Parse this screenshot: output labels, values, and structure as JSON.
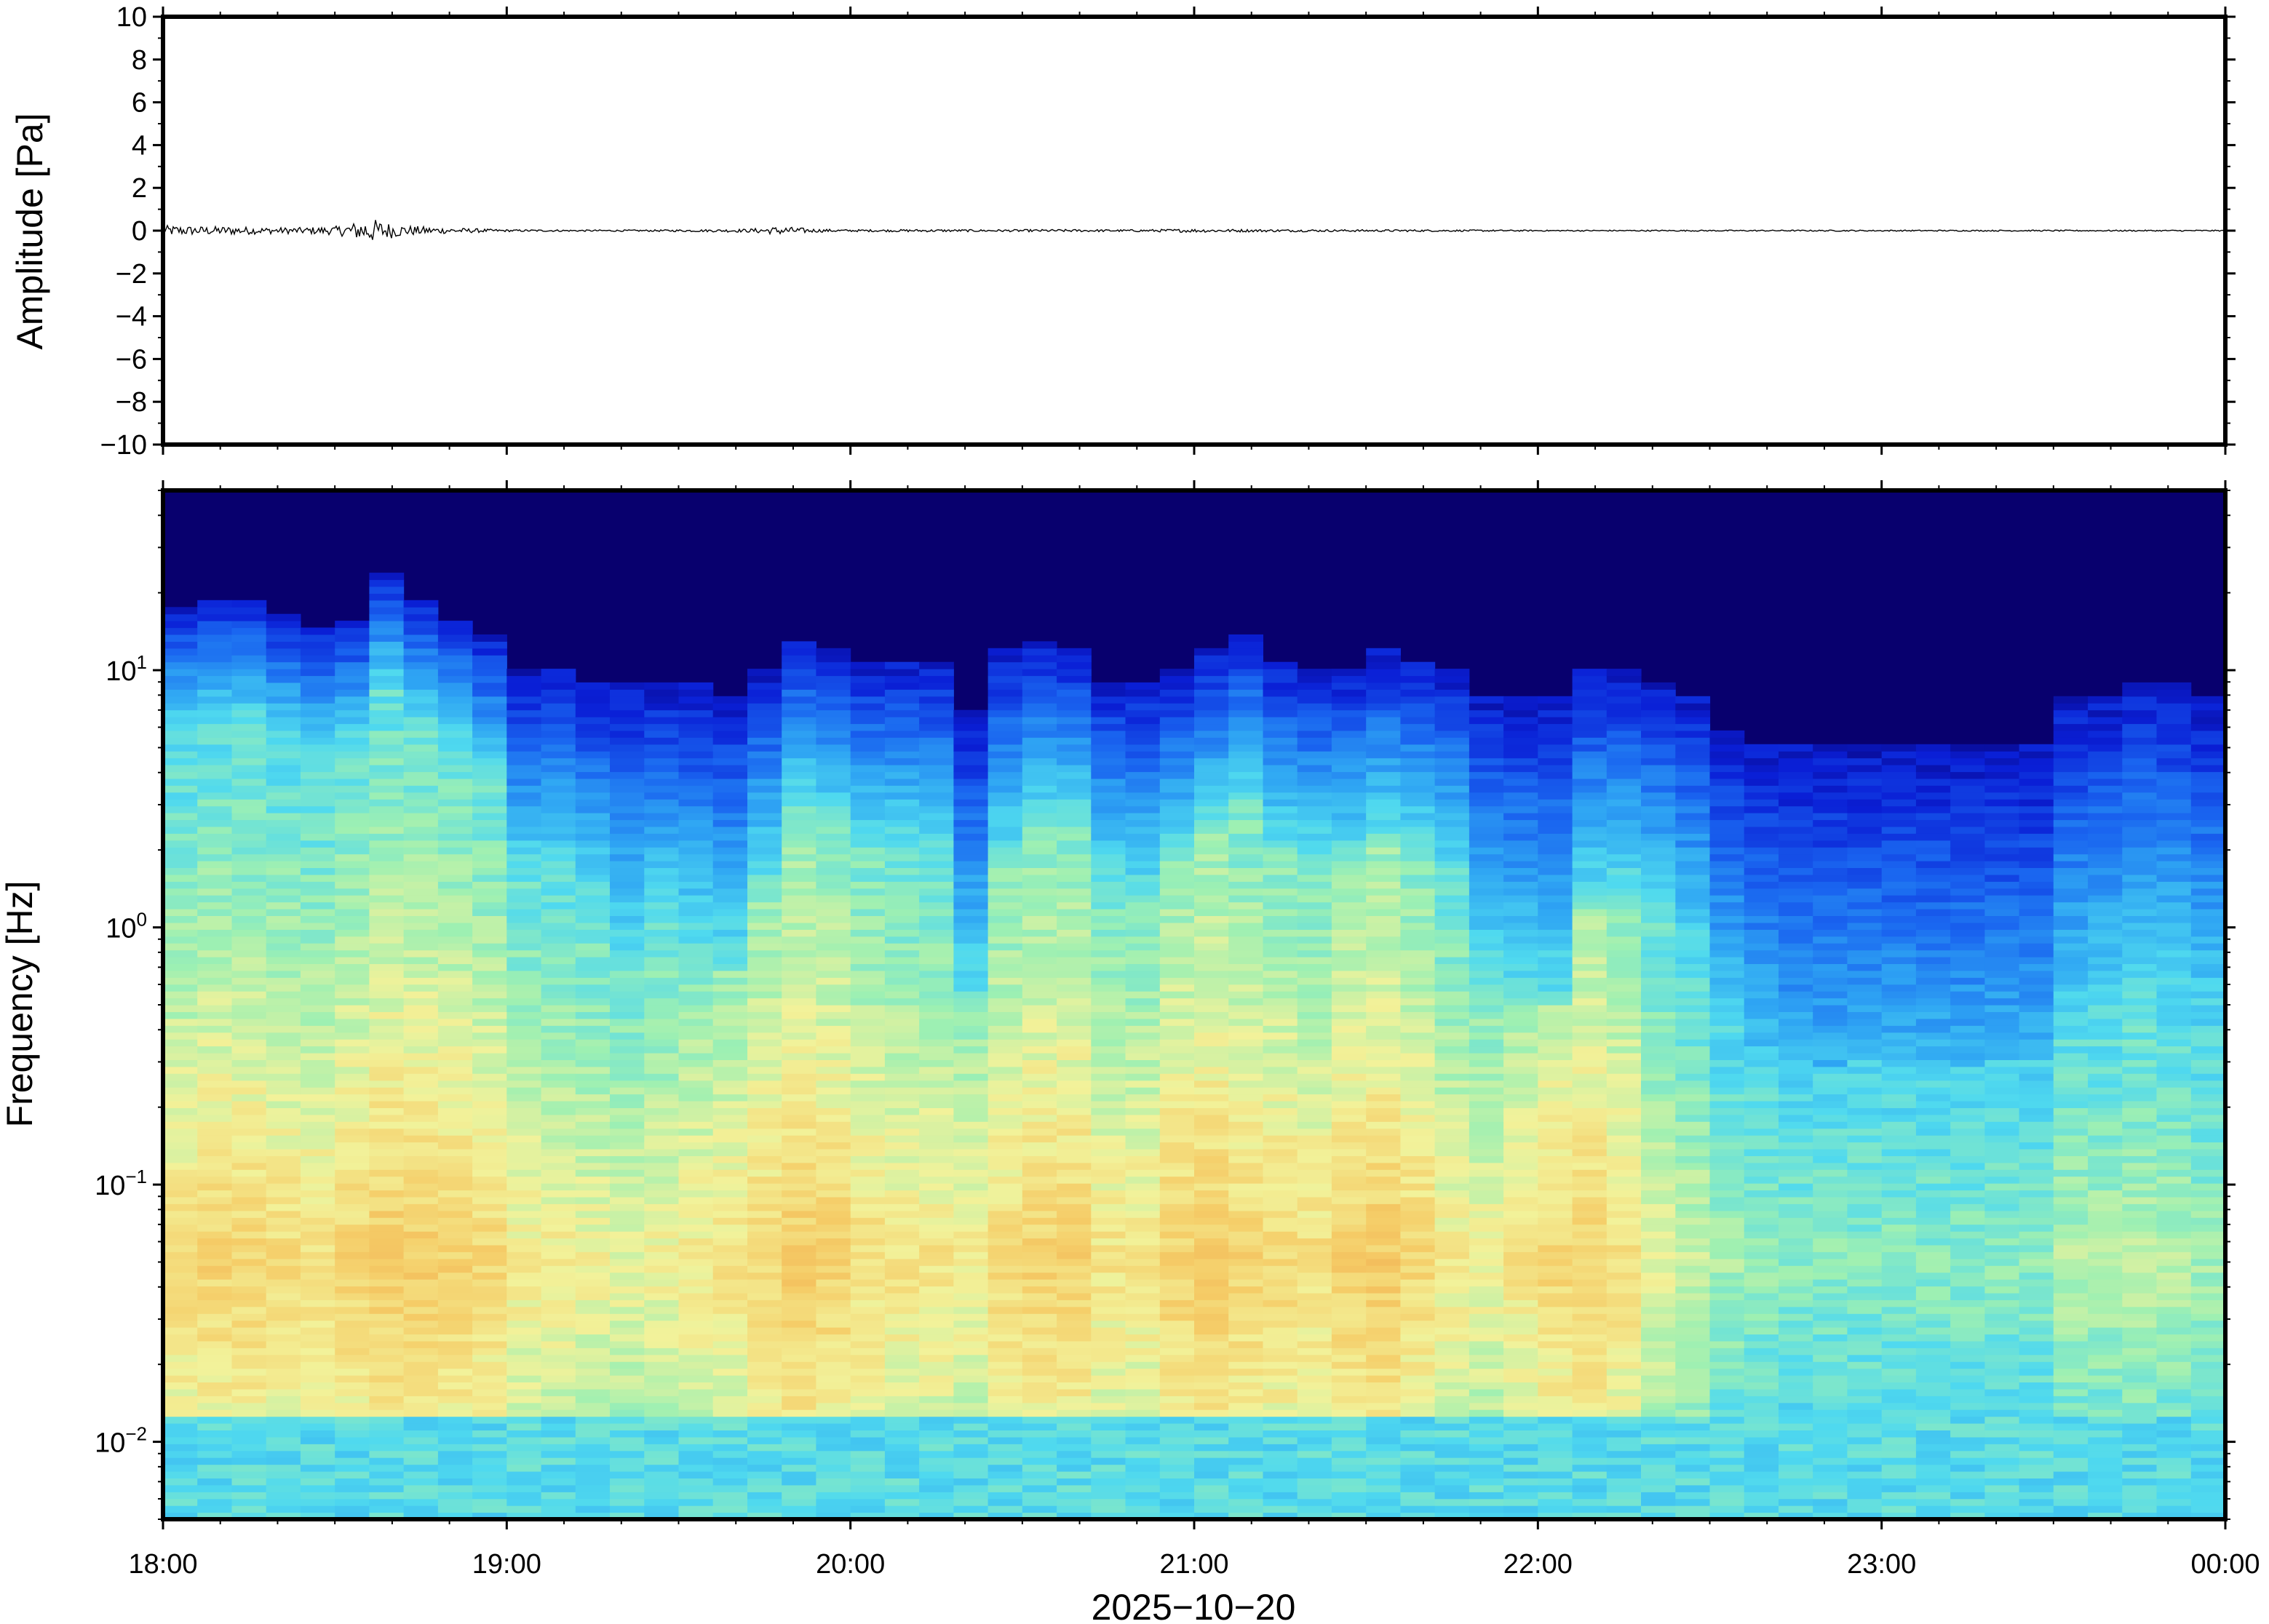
{
  "chart_data": [
    {
      "type": "line",
      "name": "waveform",
      "ylabel": "Amplitude [Pa]",
      "ylim": [
        -10,
        10
      ],
      "yticks": [
        10,
        8,
        6,
        4,
        2,
        0,
        -2,
        -4,
        -6,
        -8,
        -10
      ],
      "ytick_labels": [
        "10",
        "8",
        "6",
        "4",
        "2",
        "0",
        "−2",
        "−4",
        "−6",
        "−8",
        "−10"
      ],
      "x_range_hours": [
        18,
        24
      ],
      "envelope": {
        "x": [
          18.0,
          18.1,
          18.2,
          18.3,
          18.4,
          18.5,
          18.55,
          18.6,
          18.65,
          18.7,
          18.8,
          18.9,
          19.0,
          19.2,
          19.4,
          19.6,
          19.7,
          19.8,
          19.9,
          20.0,
          20.2,
          20.4,
          20.6,
          20.8,
          21.0,
          21.2,
          21.4,
          21.6,
          21.8,
          22.0,
          22.5,
          23.0,
          23.5,
          24.0
        ],
        "y": [
          0.25,
          0.2,
          0.2,
          0.15,
          0.15,
          0.2,
          0.35,
          0.6,
          0.4,
          0.25,
          0.15,
          0.1,
          0.05,
          0.04,
          0.04,
          0.06,
          0.08,
          0.2,
          0.08,
          0.05,
          0.06,
          0.05,
          0.06,
          0.05,
          0.08,
          0.06,
          0.05,
          0.05,
          0.04,
          0.03,
          0.03,
          0.03,
          0.03,
          0.03
        ]
      }
    },
    {
      "type": "heatmap",
      "name": "spectrogram",
      "ylabel": "Frequency [Hz]",
      "yscale": "log",
      "ylim": [
        0.005,
        50
      ],
      "yticks": [
        10,
        1,
        0.1,
        0.01
      ],
      "ytick_labels": [
        {
          "base": "10",
          "exp": "1"
        },
        {
          "base": "10",
          "exp": "0"
        },
        {
          "base": "10",
          "exp": "−1"
        },
        {
          "base": "10",
          "exp": "−2"
        }
      ],
      "xlabel": "2025−10−20",
      "xticks": [
        18,
        19,
        20,
        21,
        22,
        23,
        24
      ],
      "xtick_labels": [
        "18:00",
        "19:00",
        "20:00",
        "21:00",
        "22:00",
        "23:00",
        "00:00"
      ],
      "colormap": [
        "#08006e",
        "#0a1fd6",
        "#1a66f0",
        "#2fa6f3",
        "#4fd9ef",
        "#9ef0b2",
        "#f2f29a",
        "#f5cd68",
        "#f0a84c"
      ],
      "column_hours": 0.1,
      "columns": {
        "time_start_hours": [
          18.0,
          18.1,
          18.2,
          18.3,
          18.4,
          18.5,
          18.6,
          18.7,
          18.8,
          18.9,
          19.0,
          19.1,
          19.2,
          19.3,
          19.4,
          19.5,
          19.6,
          19.7,
          19.8,
          19.9,
          20.0,
          20.1,
          20.2,
          20.3,
          20.4,
          20.5,
          20.6,
          20.7,
          20.8,
          20.9,
          21.0,
          21.1,
          21.2,
          21.3,
          21.4,
          21.5,
          21.6,
          21.7,
          21.8,
          21.9,
          22.0,
          22.1,
          22.2,
          22.3,
          22.4,
          22.5,
          22.6,
          22.7,
          22.8,
          22.9,
          23.0,
          23.1,
          23.2,
          23.3,
          23.4,
          23.5,
          23.6,
          23.7,
          23.8,
          23.9
        ],
        "signal_ceiling_hz": [
          18,
          19,
          19,
          17,
          15,
          16,
          24,
          19,
          16,
          14,
          10,
          10,
          9,
          9,
          9,
          9,
          8,
          10,
          13,
          12,
          11,
          11,
          11,
          7,
          12,
          13,
          12,
          9,
          9,
          10,
          12,
          14,
          11,
          10,
          10,
          12,
          11,
          10,
          8,
          8,
          8,
          10,
          10,
          9,
          8,
          6,
          5,
          5,
          5,
          5,
          5,
          5,
          5,
          5,
          5,
          8,
          8,
          9,
          9,
          8
        ],
        "high_energy_top_hz": [
          5.5,
          6,
          6,
          5,
          4.5,
          5,
          8,
          6,
          5,
          3.5,
          1.5,
          1.5,
          1.2,
          0.7,
          1,
          0.8,
          0.7,
          1.5,
          3,
          2.5,
          2,
          2,
          1.8,
          0.5,
          1.8,
          2.5,
          2.5,
          1.5,
          1.3,
          1.8,
          2.5,
          3,
          2,
          1.8,
          1.8,
          2.2,
          2,
          1.5,
          0.6,
          0.5,
          0.5,
          1.2,
          1.3,
          1,
          0.8,
          0.5,
          0.35,
          0.3,
          0.28,
          0.3,
          0.3,
          0.3,
          0.28,
          0.3,
          0.3,
          0.5,
          0.6,
          0.7,
          0.7,
          0.6
        ],
        "peak_level": [
          0.83,
          0.85,
          0.85,
          0.83,
          0.82,
          0.85,
          0.88,
          0.87,
          0.86,
          0.84,
          0.78,
          0.77,
          0.76,
          0.74,
          0.76,
          0.78,
          0.8,
          0.84,
          0.88,
          0.86,
          0.82,
          0.8,
          0.8,
          0.78,
          0.83,
          0.86,
          0.86,
          0.8,
          0.8,
          0.86,
          0.88,
          0.85,
          0.84,
          0.82,
          0.86,
          0.88,
          0.84,
          0.78,
          0.76,
          0.8,
          0.84,
          0.86,
          0.82,
          0.74,
          0.7,
          0.64,
          0.62,
          0.6,
          0.6,
          0.6,
          0.6,
          0.6,
          0.6,
          0.6,
          0.6,
          0.66,
          0.66,
          0.68,
          0.66,
          0.64
        ]
      }
    }
  ]
}
